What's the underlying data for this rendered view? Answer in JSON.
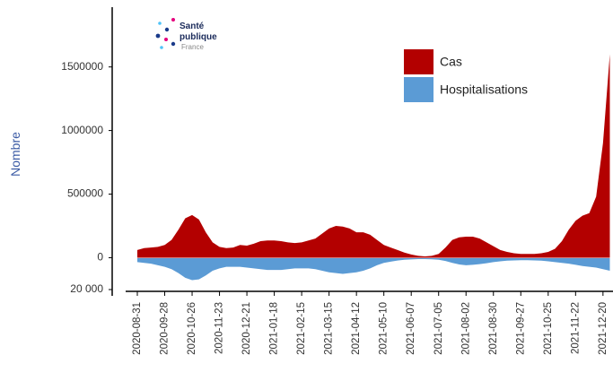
{
  "chart_data": {
    "type": "area",
    "y_label": "Nombre",
    "logo": [
      "Santé",
      "publique",
      "France"
    ],
    "legend": "top-right",
    "categories": [
      "2020-08-31",
      null,
      null,
      null,
      "2020-09-28",
      null,
      null,
      null,
      "2020-10-26",
      null,
      null,
      null,
      "2020-11-23",
      null,
      null,
      null,
      "2020-12-21",
      null,
      null,
      null,
      "2021-01-18",
      null,
      null,
      null,
      "2021-02-15",
      null,
      null,
      null,
      "2021-03-15",
      null,
      null,
      null,
      "2021-04-12",
      null,
      null,
      null,
      "2021-05-10",
      null,
      null,
      null,
      "2021-06-07",
      null,
      null,
      null,
      "2021-07-05",
      null,
      null,
      null,
      "2021-08-02",
      null,
      null,
      null,
      "2021-08-30",
      null,
      null,
      null,
      "2021-09-27",
      null,
      null,
      null,
      "2021-10-25",
      null,
      null,
      null,
      "2021-11-22",
      null,
      null,
      null,
      "2021-12-20",
      null
    ],
    "series": [
      {
        "name": "Cas",
        "color": "#b30000",
        "values": [
          60000,
          75000,
          80000,
          85000,
          100000,
          140000,
          220000,
          310000,
          335000,
          300000,
          200000,
          120000,
          85000,
          75000,
          80000,
          100000,
          95000,
          110000,
          130000,
          135000,
          135000,
          130000,
          120000,
          115000,
          120000,
          135000,
          150000,
          190000,
          230000,
          250000,
          245000,
          230000,
          200000,
          200000,
          180000,
          140000,
          100000,
          80000,
          60000,
          40000,
          25000,
          15000,
          10000,
          15000,
          30000,
          80000,
          140000,
          160000,
          165000,
          165000,
          150000,
          120000,
          90000,
          60000,
          45000,
          35000,
          30000,
          30000,
          30000,
          35000,
          45000,
          70000,
          130000,
          220000,
          290000,
          330000,
          350000,
          480000,
          900000,
          1600000
        ]
      },
      {
        "name": "Hospitalisations",
        "color": "#5b9bd5",
        "axis": "y2",
        "values": [
          2500,
          3000,
          3500,
          4500,
          5500,
          7000,
          9500,
          12500,
          14000,
          13500,
          11000,
          8000,
          6500,
          5500,
          5500,
          5500,
          6000,
          6500,
          7000,
          7500,
          7500,
          7500,
          7000,
          6500,
          6500,
          6500,
          7000,
          8000,
          9000,
          9500,
          10000,
          9500,
          9000,
          8000,
          6500,
          4500,
          3000,
          2200,
          1500,
          1000,
          800,
          600,
          600,
          700,
          1000,
          1800,
          3000,
          4000,
          4500,
          4200,
          3800,
          3200,
          2500,
          2000,
          1600,
          1400,
          1300,
          1300,
          1400,
          1600,
          2000,
          2500,
          3000,
          3500,
          4200,
          5000,
          5500,
          6000,
          7000,
          8000
        ]
      }
    ],
    "ylim": [
      -300000,
      1970000
    ],
    "yticks": [
      0,
      500000,
      1000000,
      1500000
    ],
    "y2lim": [
      24000,
      -160000
    ],
    "y2ticks": [
      {
        "value": 20000,
        "label": "20 000"
      }
    ]
  }
}
